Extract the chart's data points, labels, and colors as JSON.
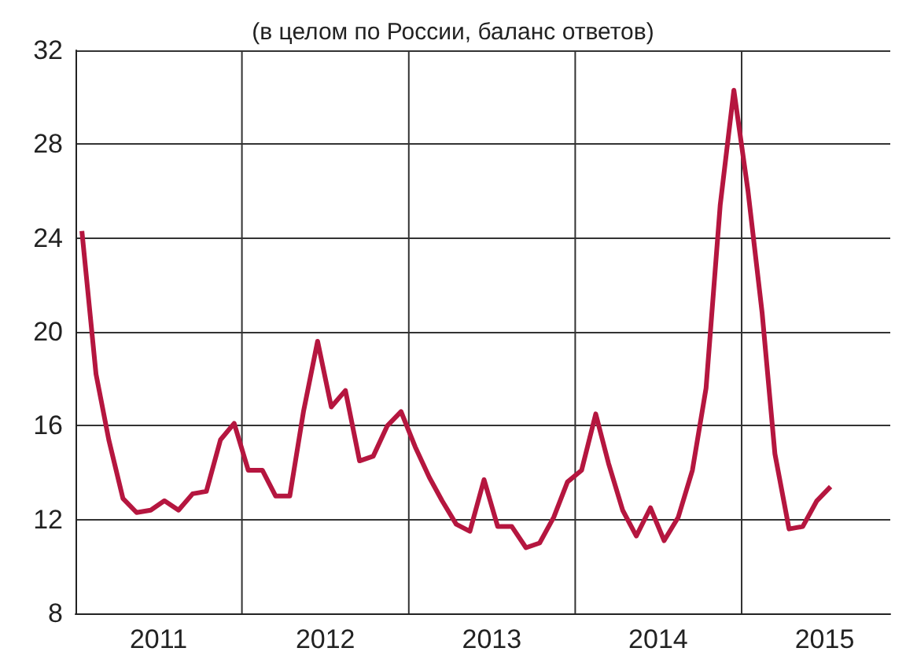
{
  "chart_data": {
    "type": "line",
    "subtitle": "(в целом по России, баланс ответов)",
    "x": [
      "2011-01-15",
      "2011-02-15",
      "2011-03-15",
      "2011-04-15",
      "2011-05-15",
      "2011-06-15",
      "2011-07-15",
      "2011-08-15",
      "2011-09-15",
      "2011-10-15",
      "2011-11-15",
      "2011-12-15",
      "2012-01-15",
      "2012-02-15",
      "2012-03-15",
      "2012-04-15",
      "2012-05-15",
      "2012-06-15",
      "2012-07-15",
      "2012-08-15",
      "2012-09-15",
      "2012-10-15",
      "2012-11-15",
      "2012-12-15",
      "2013-01-15",
      "2013-02-15",
      "2013-03-15",
      "2013-04-15",
      "2013-05-15",
      "2013-06-15",
      "2013-07-15",
      "2013-08-15",
      "2013-09-15",
      "2013-10-15",
      "2013-11-15",
      "2013-12-15",
      "2014-01-15",
      "2014-02-15",
      "2014-03-15",
      "2014-04-15",
      "2014-05-15",
      "2014-06-15",
      "2014-07-15",
      "2014-08-15",
      "2014-09-15",
      "2014-10-15",
      "2014-11-15",
      "2014-12-15",
      "2015-01-15",
      "2015-02-15",
      "2015-03-15",
      "2015-04-15",
      "2015-05-15",
      "2015-06-15",
      "2015-07-15"
    ],
    "series": [
      {
        "color": "#b5163f",
        "values": [
          24.3,
          18.2,
          15.4,
          12.9,
          12.3,
          12.4,
          12.8,
          12.4,
          13.1,
          13.2,
          15.4,
          16.1,
          14.1,
          14.1,
          13.0,
          13.0,
          16.6,
          19.6,
          16.8,
          17.5,
          14.5,
          14.7,
          16.0,
          16.6,
          15.1,
          13.8,
          12.8,
          11.8,
          11.5,
          13.7,
          11.7,
          11.7,
          10.8,
          11.0,
          12.1,
          13.6,
          14.1,
          16.5,
          14.4,
          12.4,
          11.3,
          12.5,
          11.1,
          12.1,
          14.1,
          17.6,
          25.4,
          30.3,
          26.0,
          20.8,
          14.8,
          11.6,
          11.7,
          12.8,
          13.4
        ]
      }
    ],
    "xlim": [
      "2011-01-01",
      "2015-11-23"
    ],
    "xticks": [
      {
        "value": "2011-07-02",
        "label": "2011"
      },
      {
        "value": "2012-01-01",
        "label": null
      },
      {
        "value": "2012-07-02",
        "label": "2012"
      },
      {
        "value": "2013-01-01",
        "label": null
      },
      {
        "value": "2013-07-02",
        "label": "2013"
      },
      {
        "value": "2014-01-01",
        "label": null
      },
      {
        "value": "2014-07-02",
        "label": "2014"
      },
      {
        "value": "2015-01-01",
        "label": null
      },
      {
        "value": "2015-07-02",
        "label": "2015"
      }
    ],
    "ylim": [
      8,
      32
    ],
    "yticks": [
      8,
      12,
      16,
      20,
      24,
      28,
      32
    ],
    "grid": true,
    "marker": "none",
    "line_style": "solid"
  }
}
